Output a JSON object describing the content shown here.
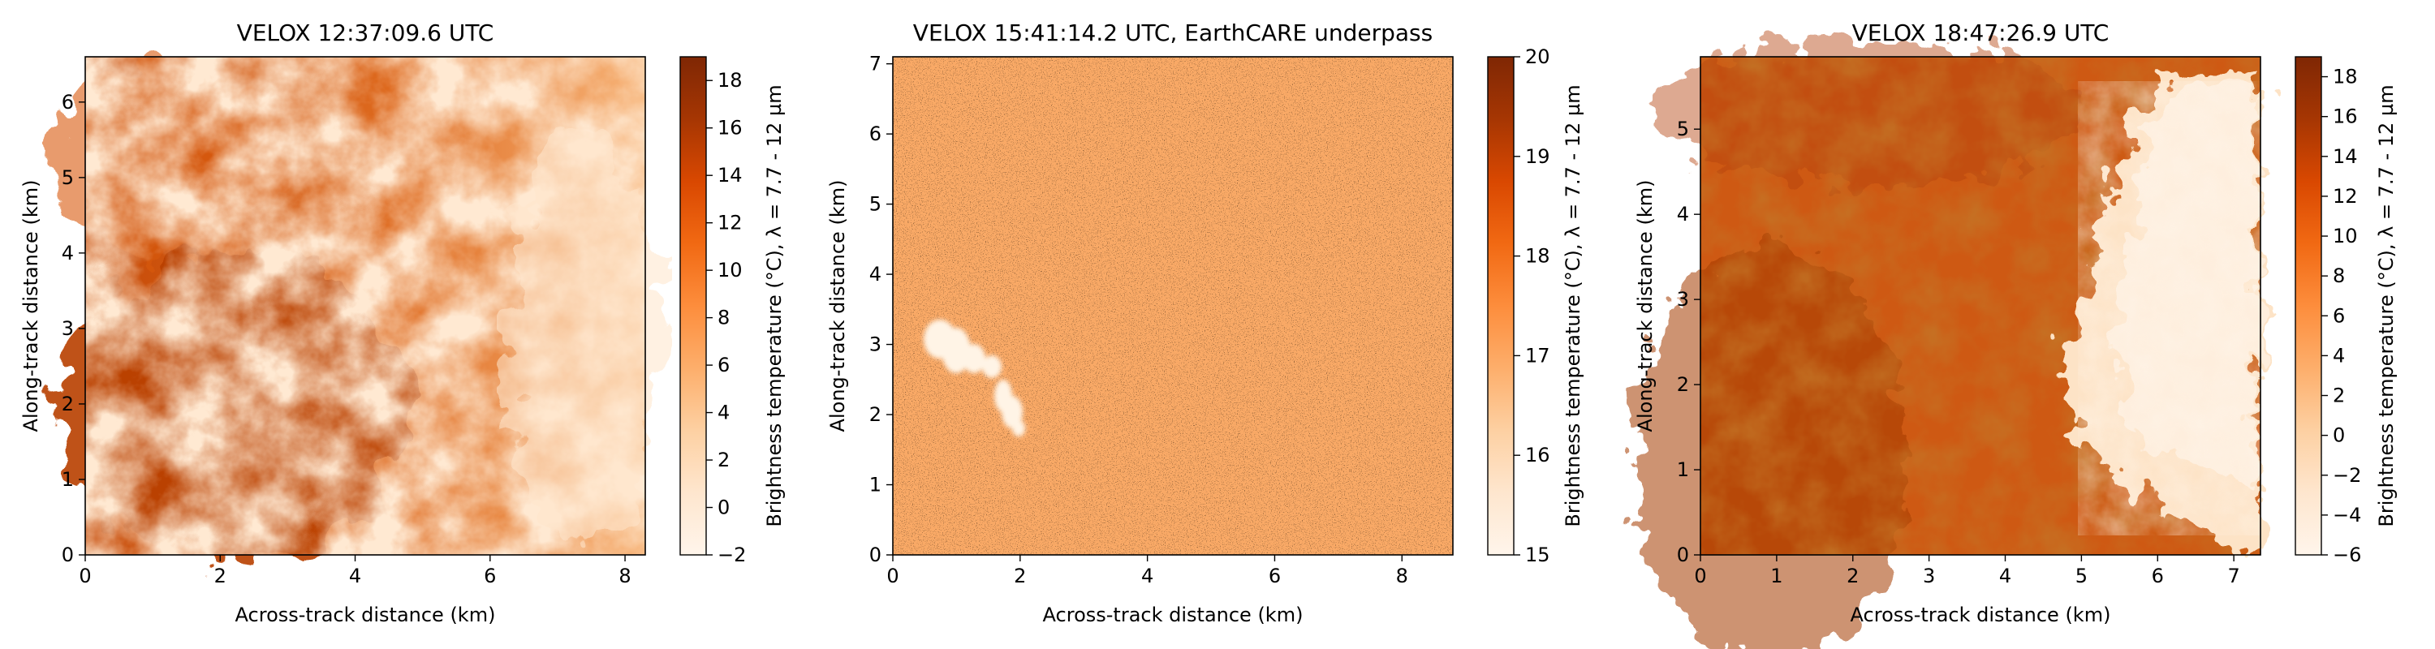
{
  "chart_data": [
    {
      "type": "heatmap",
      "title": "VELOX 12:37:09.6 UTC",
      "xlabel": "Across-track distance (km)",
      "ylabel": "Along-track distance (km)",
      "xlim": [
        0,
        8.3
      ],
      "ylim": [
        0,
        6.6
      ],
      "xticks": [
        0,
        2,
        4,
        6,
        8
      ],
      "yticks": [
        0,
        1,
        2,
        3,
        4,
        5,
        6
      ],
      "colorbar": {
        "label": "Brightness temperature (°C), λ = 7.7 - 12 µm",
        "range": [
          -2,
          19
        ],
        "ticks": [
          -2,
          0,
          2,
          4,
          6,
          8,
          10,
          12,
          14,
          16,
          18
        ],
        "colormap": "Oranges"
      }
    },
    {
      "type": "heatmap",
      "title": "VELOX 15:41:14.2 UTC, EarthCARE underpass",
      "xlabel": "Across-track distance (km)",
      "ylabel": "Along-track distance (km)",
      "xlim": [
        0,
        8.8
      ],
      "ylim": [
        0,
        7.1
      ],
      "xticks": [
        0,
        2,
        4,
        6,
        8
      ],
      "yticks": [
        0,
        1,
        2,
        3,
        4,
        5,
        6,
        7
      ],
      "colorbar": {
        "label": "Brightness temperature (°C), λ = 7.7 - 12 µm",
        "range": [
          15,
          20
        ],
        "ticks": [
          15,
          16,
          17,
          18,
          19,
          20
        ],
        "colormap": "Oranges"
      }
    },
    {
      "type": "heatmap",
      "title": "VELOX 18:47:26.9 UTC",
      "xlabel": "Across-track distance (km)",
      "ylabel": "Along-track distance (km)",
      "xlim": [
        0,
        7.35
      ],
      "ylim": [
        0,
        5.85
      ],
      "xticks": [
        0,
        1,
        2,
        3,
        4,
        5,
        6,
        7
      ],
      "yticks": [
        0,
        1,
        2,
        3,
        4,
        5
      ],
      "colorbar": {
        "label": "Brightness temperature (°C), λ = 7.7 - 12 µm",
        "range": [
          -6,
          19
        ],
        "ticks": [
          -6,
          -4,
          -2,
          0,
          2,
          4,
          6,
          8,
          10,
          12,
          14,
          16,
          18
        ],
        "colormap": "Oranges"
      }
    }
  ]
}
